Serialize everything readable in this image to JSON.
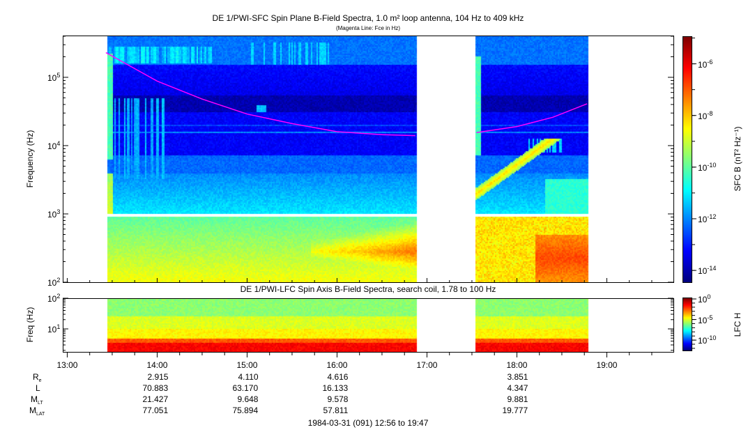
{
  "title": "DE 1/PWI-SFC  Spin Plane B-Field Spectra, 1.0 m² loop antenna, 104 Hz to 409 kHz",
  "subtitle": "(Magenta Line: Fce in Hz)",
  "lower_title": "DE 1/PWI-LFC  Spin Axis B-Field Spectra, search coil, 1.78 to 100 Hz",
  "footer": "1984-03-31 (091) 12:56 to 19:47",
  "colors": {
    "fce_line": "#ff00ff",
    "axis": "#000000",
    "background": "#ffffff"
  },
  "chart_data": [
    {
      "type": "heatmap",
      "panel": "SFC",
      "ylabel": "Frequency (Hz)",
      "yscale": "log",
      "ylim": [
        100,
        409000
      ],
      "y_ticks": [
        {
          "base": "10",
          "exp": "2",
          "value": 100
        },
        {
          "base": "10",
          "exp": "3",
          "value": 1000
        },
        {
          "base": "10",
          "exp": "4",
          "value": 10000
        },
        {
          "base": "10",
          "exp": "5",
          "value": 100000
        }
      ],
      "x_unit": "UT hours",
      "xlim": [
        12.95,
        19.78
      ],
      "data_intervals": [
        [
          "13:26",
          "16:53"
        ],
        [
          "17:32",
          "18:47"
        ]
      ],
      "frequency_gap_hz": [
        900,
        1000
      ],
      "colorbar": {
        "label": "SFC B (nT² Hz⁻¹)",
        "scale": "log",
        "range": [
          3.5e-15,
          1.1e-05
        ],
        "colormap": "jet",
        "ticks": [
          {
            "base": "10",
            "exp": "-6",
            "value": 1e-06
          },
          {
            "base": "10",
            "exp": "-8",
            "value": 1e-08
          },
          {
            "base": "10",
            "exp": "-10",
            "value": 1e-10
          },
          {
            "base": "10",
            "exp": "-12",
            "value": 1e-12
          },
          {
            "base": "10",
            "exp": "-14",
            "value": 1e-14
          }
        ]
      },
      "fce_line": {
        "name": "Fce in Hz",
        "points": [
          [
            13.43,
            230000
          ],
          [
            14.0,
            88000
          ],
          [
            14.5,
            48000
          ],
          [
            15.0,
            29000
          ],
          [
            15.5,
            21000
          ],
          [
            16.0,
            16000
          ],
          [
            16.5,
            14500
          ],
          [
            16.87,
            14000
          ],
          [
            17.55,
            15500
          ],
          [
            18.0,
            19000
          ],
          [
            18.4,
            26000
          ],
          [
            18.78,
            41000
          ]
        ]
      }
    },
    {
      "type": "heatmap",
      "panel": "LFC",
      "ylabel": "Freq (Hz)",
      "yscale": "log",
      "ylim": [
        1.78,
        100
      ],
      "y_ticks": [
        {
          "base": "10",
          "exp": "1",
          "value": 10
        },
        {
          "base": "10",
          "exp": "2",
          "value": 100
        }
      ],
      "xlim": [
        12.95,
        19.78
      ],
      "data_intervals": [
        [
          "13:26",
          "16:53"
        ],
        [
          "17:32",
          "18:47"
        ]
      ],
      "colorbar": {
        "label": "LFC H",
        "scale": "log",
        "range": [
          3e-13,
          1.5
        ],
        "colormap": "jet",
        "ticks": [
          {
            "base": "10",
            "exp": "0",
            "value": 1
          },
          {
            "base": "10",
            "exp": "-5",
            "value": 1e-05
          },
          {
            "base": "10",
            "exp": "-10",
            "value": 1e-10
          }
        ]
      }
    }
  ],
  "time_axis": {
    "ticks": [
      {
        "label": "13:00",
        "h": 13
      },
      {
        "label": "14:00",
        "h": 14
      },
      {
        "label": "15:00",
        "h": 15
      },
      {
        "label": "16:00",
        "h": 16
      },
      {
        "label": "17:00",
        "h": 17
      },
      {
        "label": "18:00",
        "h": 18
      },
      {
        "label": "19:00",
        "h": 19
      }
    ]
  },
  "ephemeris": {
    "rows": [
      {
        "label": "R",
        "sub": "e",
        "values": {
          "14": "2.915",
          "15": "4.110",
          "16": "4.616",
          "18": "3.851"
        }
      },
      {
        "label": "L",
        "sub": "",
        "values": {
          "14": "70.883",
          "15": "63.170",
          "16": "16.133",
          "18": "4.347"
        }
      },
      {
        "label": "M",
        "sub": "LT",
        "values": {
          "14": "21.427",
          "15": "9.648",
          "16": "9.578",
          "18": "9.881"
        }
      },
      {
        "label": "M",
        "sub": "LAT",
        "values": {
          "14": "77.051",
          "15": "75.894",
          "16": "57.811",
          "18": "19.777"
        }
      }
    ]
  }
}
